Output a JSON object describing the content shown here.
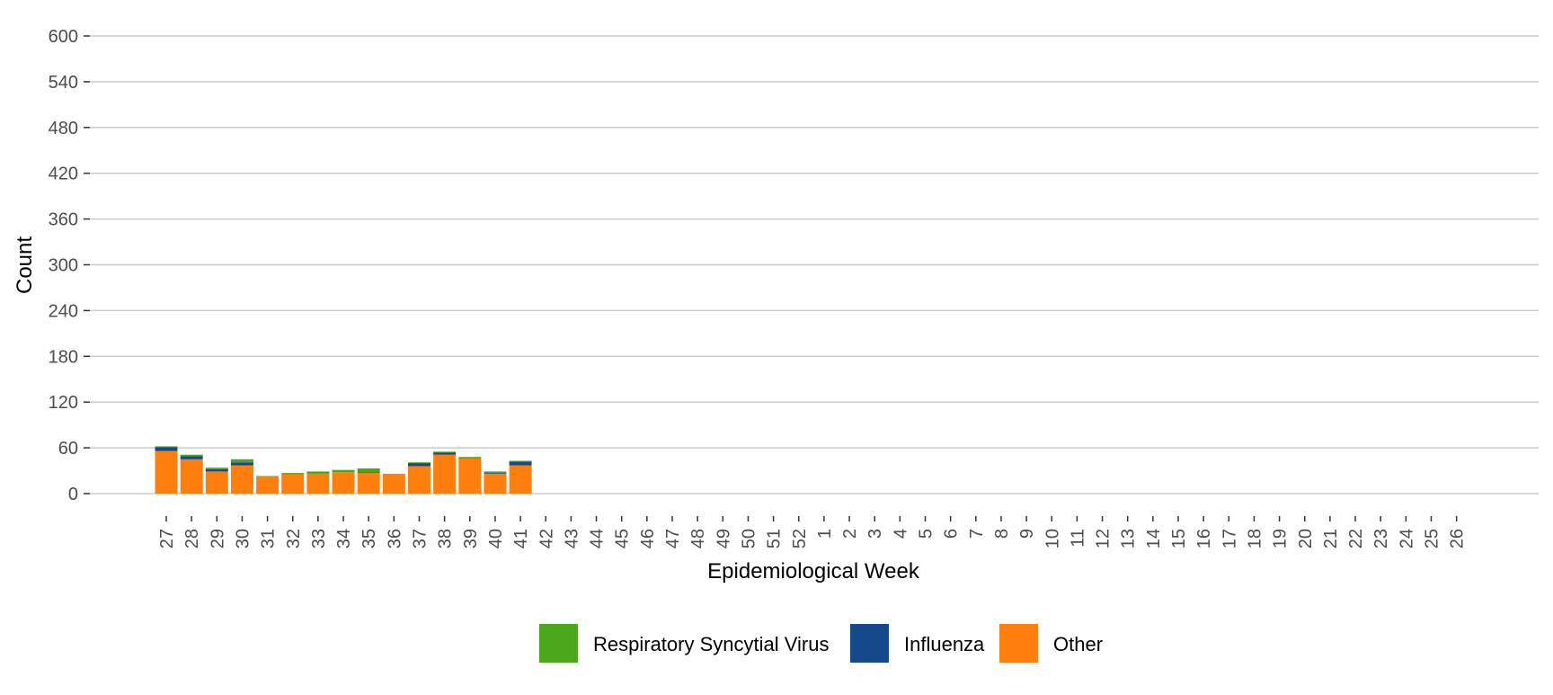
{
  "chart_data": {
    "type": "bar",
    "stacked": true,
    "xlabel": "Epidemiological Week",
    "ylabel": "Count",
    "ylim": [
      0,
      600
    ],
    "yticks": [
      0,
      60,
      120,
      180,
      240,
      300,
      360,
      420,
      480,
      540,
      600
    ],
    "grid": "horizontal major gridlines",
    "legend_position": "bottom",
    "categories": [
      "27",
      "28",
      "29",
      "30",
      "31",
      "32",
      "33",
      "34",
      "35",
      "36",
      "37",
      "38",
      "39",
      "40",
      "41",
      "42",
      "43",
      "44",
      "45",
      "46",
      "47",
      "48",
      "49",
      "50",
      "51",
      "52",
      "1",
      "2",
      "3",
      "4",
      "5",
      "6",
      "7",
      "8",
      "9",
      "10",
      "11",
      "12",
      "13",
      "14",
      "15",
      "16",
      "17",
      "18",
      "19",
      "20",
      "21",
      "22",
      "23",
      "24",
      "25",
      "26"
    ],
    "series": [
      {
        "name": "Other",
        "color": "#ff7f0e",
        "values": [
          56,
          45,
          29,
          37,
          22,
          25,
          26,
          28,
          27,
          26,
          36,
          51,
          46,
          26,
          37,
          null,
          null,
          null,
          null,
          null,
          null,
          null,
          null,
          null,
          null,
          null,
          null,
          null,
          null,
          null,
          null,
          null,
          null,
          null,
          null,
          null,
          null,
          null,
          null,
          null,
          null,
          null,
          null,
          null,
          null,
          null,
          null,
          null,
          null,
          null,
          null,
          null
        ]
      },
      {
        "name": "Influenza",
        "color": "#144a8c",
        "values": [
          5,
          4,
          3,
          4,
          0,
          0,
          0,
          0,
          1,
          0,
          4,
          3,
          0,
          1,
          5,
          null,
          null,
          null,
          null,
          null,
          null,
          null,
          null,
          null,
          null,
          null,
          null,
          null,
          null,
          null,
          null,
          null,
          null,
          null,
          null,
          null,
          null,
          null,
          null,
          null,
          null,
          null,
          null,
          null,
          null,
          null,
          null,
          null,
          null,
          null,
          null,
          null
        ]
      },
      {
        "name": "Respiratory Syncytial Virus",
        "color": "#4aa71c",
        "values": [
          1,
          2,
          2,
          4,
          1,
          2,
          3,
          3,
          5,
          0,
          1,
          1,
          2,
          2,
          1,
          null,
          null,
          null,
          null,
          null,
          null,
          null,
          null,
          null,
          null,
          null,
          null,
          null,
          null,
          null,
          null,
          null,
          null,
          null,
          null,
          null,
          null,
          null,
          null,
          null,
          null,
          null,
          null,
          null,
          null,
          null,
          null,
          null,
          null,
          null,
          null,
          null
        ]
      }
    ],
    "legend": [
      {
        "label": "Respiratory Syncytial Virus",
        "color": "#4aa71c"
      },
      {
        "label": "Influenza",
        "color": "#144a8c"
      },
      {
        "label": "Other",
        "color": "#ff7f0e"
      }
    ]
  }
}
